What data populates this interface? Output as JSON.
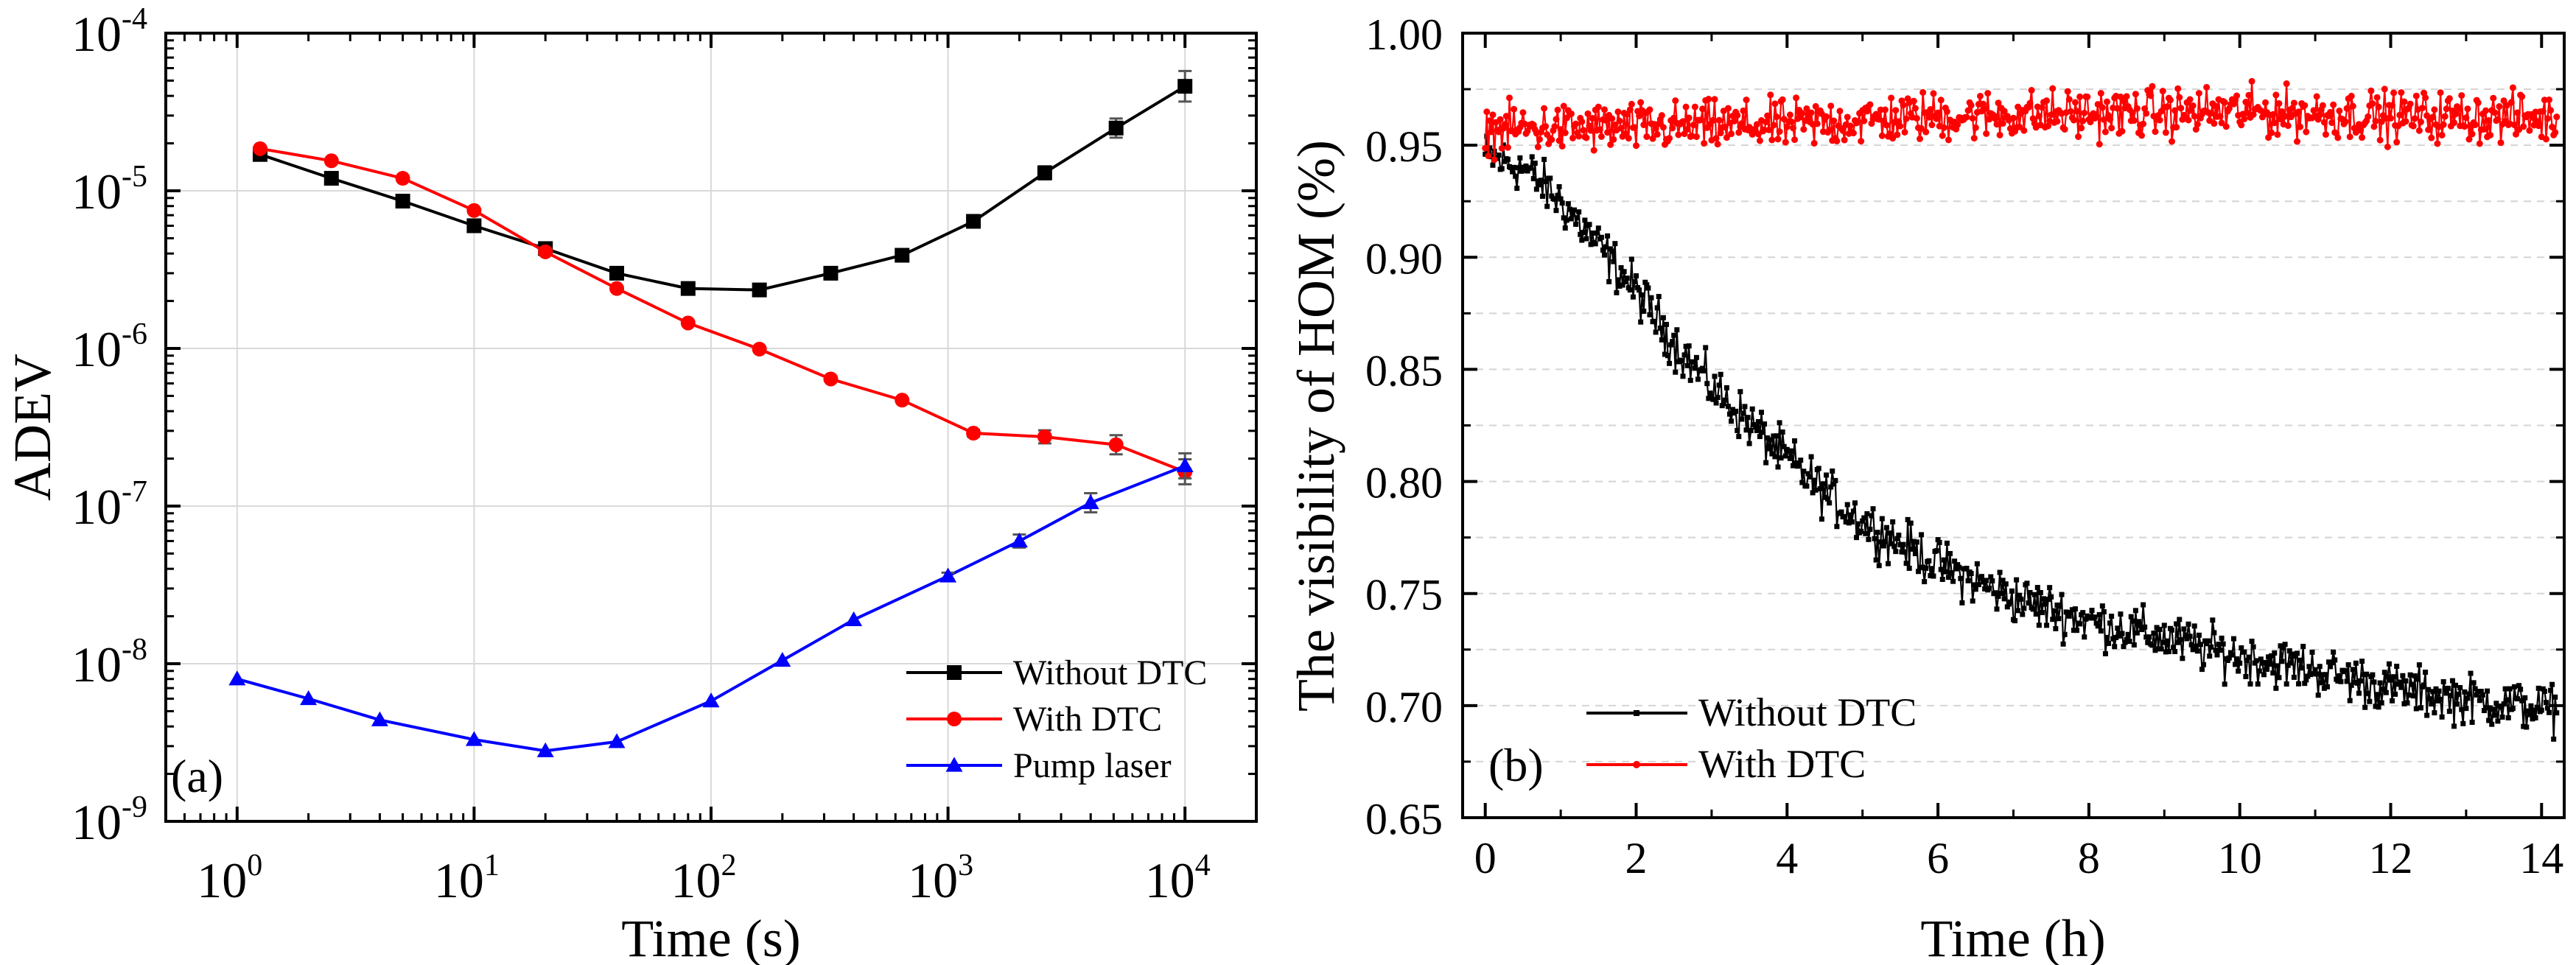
{
  "chart_data": [
    {
      "type": "line",
      "panel_label": "(a)",
      "xlabel": "Time (s)",
      "ylabel": "ADEV",
      "xscale": "log",
      "yscale": "log",
      "xlim": [
        0.5,
        20000
      ],
      "ylim": [
        1e-09,
        0.0001
      ],
      "x_ticks": [
        {
          "mant": "10",
          "exp": "0"
        },
        {
          "mant": "10",
          "exp": "1"
        },
        {
          "mant": "10",
          "exp": "2"
        },
        {
          "mant": "10",
          "exp": "3"
        },
        {
          "mant": "10",
          "exp": "4"
        }
      ],
      "y_ticks": [
        {
          "mant": "10",
          "exp": "-9"
        },
        {
          "mant": "10",
          "exp": "-8"
        },
        {
          "mant": "10",
          "exp": "-7"
        },
        {
          "mant": "10",
          "exp": "-6"
        },
        {
          "mant": "10",
          "exp": "-5"
        },
        {
          "mant": "10",
          "exp": "-4"
        }
      ],
      "grid": true,
      "legend_position": "bottom-right",
      "series": [
        {
          "name": "Without DTC",
          "color": "#000000",
          "marker": "square",
          "x": [
            1.25,
            2.5,
            5,
            10,
            20,
            40,
            80,
            160,
            320,
            640,
            1280,
            2560,
            5120,
            10000
          ],
          "y": [
            1.7e-05,
            1.2e-05,
            8.6e-06,
            6e-06,
            4.3e-06,
            3e-06,
            2.4e-06,
            2.35e-06,
            3e-06,
            3.9e-06,
            6.4e-06,
            1.3e-05,
            2.5e-05,
            4.6e-05
          ],
          "err_rel": [
            0,
            0,
            0,
            0,
            0,
            0,
            0,
            0,
            0,
            0,
            0.05,
            0.1,
            0.15,
            0.25
          ]
        },
        {
          "name": "With DTC",
          "color": "#ff0000",
          "marker": "circle",
          "x": [
            1.25,
            2.5,
            5,
            10,
            20,
            40,
            80,
            160,
            320,
            640,
            1280,
            2560,
            5120,
            10000
          ],
          "y": [
            1.85e-05,
            1.55e-05,
            1.2e-05,
            7.5e-06,
            4.1e-06,
            2.4e-06,
            1.45e-06,
            9.9e-07,
            6.4e-07,
            4.7e-07,
            2.9e-07,
            2.75e-07,
            2.45e-07,
            1.65e-07
          ],
          "err_rel": [
            0,
            0,
            0,
            0,
            0,
            0,
            0,
            0,
            0,
            0,
            0.05,
            0.1,
            0.15,
            0.2
          ]
        },
        {
          "name": "Pump laser",
          "color": "#0000ff",
          "marker": "triangle",
          "x": [
            1,
            2,
            4,
            10,
            20,
            40,
            100,
            200,
            400,
            1000,
            2000,
            4000,
            10000
          ],
          "y": [
            8e-09,
            6e-09,
            4.4e-09,
            3.3e-09,
            2.8e-09,
            3.2e-09,
            5.8e-09,
            1.05e-08,
            1.9e-08,
            3.6e-08,
            6e-08,
            1.05e-07,
            1.8e-07
          ],
          "err_rel": [
            0,
            0,
            0,
            0,
            0,
            0,
            0,
            0,
            0,
            0.05,
            0.1,
            0.15,
            0.2
          ]
        }
      ]
    },
    {
      "type": "line",
      "panel_label": "(b)",
      "xlabel": "Time (h)",
      "ylabel": "The visibility of HOM (%)",
      "xlim": [
        -0.3,
        14.3
      ],
      "ylim": [
        0.65,
        1.0
      ],
      "x_ticks": [
        "0",
        "2",
        "4",
        "6",
        "8",
        "10",
        "12",
        "14"
      ],
      "y_ticks": [
        "0.65",
        "0.70",
        "0.75",
        "0.80",
        "0.85",
        "0.90",
        "0.95",
        "1.00"
      ],
      "grid": "horizontal dashed",
      "legend_position": "bottom-left",
      "sampling_interval_h": 0.02,
      "series": [
        {
          "name": "Without DTC",
          "color": "#000000",
          "marker": "square",
          "trend": {
            "x": [
              0,
              0.5,
              1,
              1.5,
              2,
              2.5,
              3,
              3.5,
              4,
              4.5,
              5,
              6,
              7,
              8,
              9,
              10,
              11,
              12,
              13,
              14.2
            ],
            "y": [
              0.945,
              0.94,
              0.925,
              0.905,
              0.885,
              0.862,
              0.842,
              0.826,
              0.81,
              0.795,
              0.782,
              0.763,
              0.748,
              0.738,
              0.73,
              0.722,
              0.716,
              0.708,
              0.703,
              0.698
            ]
          },
          "noise_amplitude": 0.012
        },
        {
          "name": "With DTC",
          "color": "#ff0000",
          "marker": "circle",
          "trend": {
            "x": [
              0,
              2,
              4,
              6,
              8,
              10,
              12,
              14.2
            ],
            "y": [
              0.957,
              0.958,
              0.959,
              0.963,
              0.964,
              0.965,
              0.963,
              0.962
            ]
          },
          "noise_amplitude": 0.012
        }
      ]
    }
  ]
}
